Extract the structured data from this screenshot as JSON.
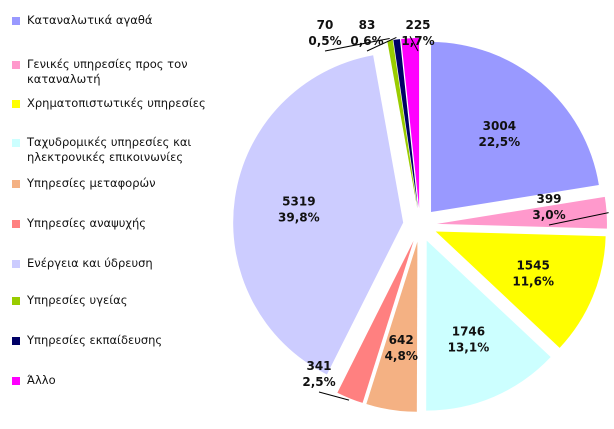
{
  "chart_data": {
    "type": "pie",
    "title": "",
    "categories": [
      "Καταναλωτικά αγαθά",
      "Γενικές υπηρεσίες προς τον καταναλωτή",
      "Χρηματοπιστωτικές υπηρεσίες",
      "Ταχυδρομικές υπηρεσίες και ηλεκτρονικές επικοινωνίες",
      "Υπηρεσίες μεταφορών",
      "Υπηρεσίες αναψυχής",
      "Ενέργεια και ύδρευση",
      "Υπηρεσίες υγείας",
      "Υπηρεσίες εκπαίδευσης",
      "Άλλο"
    ],
    "values": [
      3004,
      399,
      1545,
      1746,
      642,
      341,
      5319,
      70,
      83,
      225
    ],
    "value_labels": [
      "3004",
      "399",
      "1545",
      "1746",
      "642",
      "341",
      "5319",
      "70",
      "83",
      "225"
    ],
    "percent_labels": [
      "22,5%",
      "3,0%",
      "11,6%",
      "13,1%",
      "4,8%",
      "2,5%",
      "39,8%",
      "0,5%",
      "0,6%",
      "1,7%"
    ],
    "colors": [
      "#9999ff",
      "#ff99cc",
      "#ffff00",
      "#ccffff",
      "#f4b183",
      "#ff8080",
      "#ccccff",
      "#99cc00",
      "#000066",
      "#ff00ff"
    ],
    "legend_position": "left",
    "exploded": true
  },
  "legend": {
    "items": [
      {
        "label": "Καταναλωτικά αγαθά",
        "color": "#9999ff"
      },
      {
        "label": "Γενικές υπηρεσίες προς τον καταναλωτή",
        "color": "#ff99cc"
      },
      {
        "label": "Χρηματοπιστωτικές υπηρεσίες",
        "color": "#ffff00"
      },
      {
        "label": "Ταχυδρομικές υπηρεσίες και ηλεκτρονικές επικοινωνίες",
        "color": "#ccffff"
      },
      {
        "label": "Υπηρεσίες μεταφορών",
        "color": "#f4b183"
      },
      {
        "label": "Υπηρεσίες αναψυχής",
        "color": "#ff8080"
      },
      {
        "label": "Ενέργεια και ύδρευση",
        "color": "#ccccff"
      },
      {
        "label": "Υπηρεσίες υγείας",
        "color": "#99cc00"
      },
      {
        "label": "Υπηρεσίες εκπαίδευσης",
        "color": "#000066"
      },
      {
        "label": "Άλλο",
        "color": "#ff00ff"
      }
    ]
  }
}
